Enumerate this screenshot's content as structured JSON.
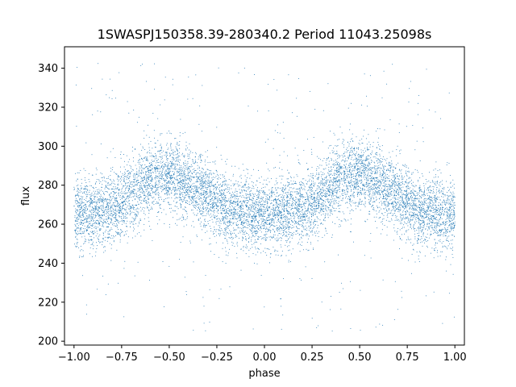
{
  "chart_data": {
    "type": "scatter",
    "title": "1SWASPJ150358.39-280340.2 Period 11043.25098s",
    "xlabel": "phase",
    "ylabel": "flux",
    "xlim": [
      -1.05,
      1.05
    ],
    "ylim": [
      198,
      351
    ],
    "x_ticks": [
      -1.0,
      -0.75,
      -0.5,
      -0.25,
      0.0,
      0.25,
      0.5,
      0.75,
      1.0
    ],
    "x_tick_labels": [
      "−1.00",
      "−0.75",
      "−0.50",
      "−0.25",
      "0.00",
      "0.25",
      "0.50",
      "0.75",
      "1.00"
    ],
    "y_ticks": [
      200,
      220,
      240,
      260,
      280,
      300,
      320,
      340
    ],
    "y_tick_labels": [
      "200",
      "220",
      "240",
      "260",
      "280",
      "300",
      "320",
      "340"
    ],
    "grid": false,
    "marker_color": "#1f77b4",
    "series": [
      {
        "x_range": [
          -1.0,
          1.0
        ],
        "profile_phase": [
          0.0,
          0.1,
          0.2,
          0.3,
          0.4,
          0.5,
          0.6,
          0.7,
          0.8,
          0.9,
          1.0
        ],
        "profile_flux": [
          265,
          266,
          268,
          275,
          284,
          286,
          281,
          275,
          268,
          266,
          265
        ],
        "scatter_sd": 9,
        "outlier_range": [
          205,
          345
        ],
        "approx_point_count": 9000
      }
    ]
  }
}
